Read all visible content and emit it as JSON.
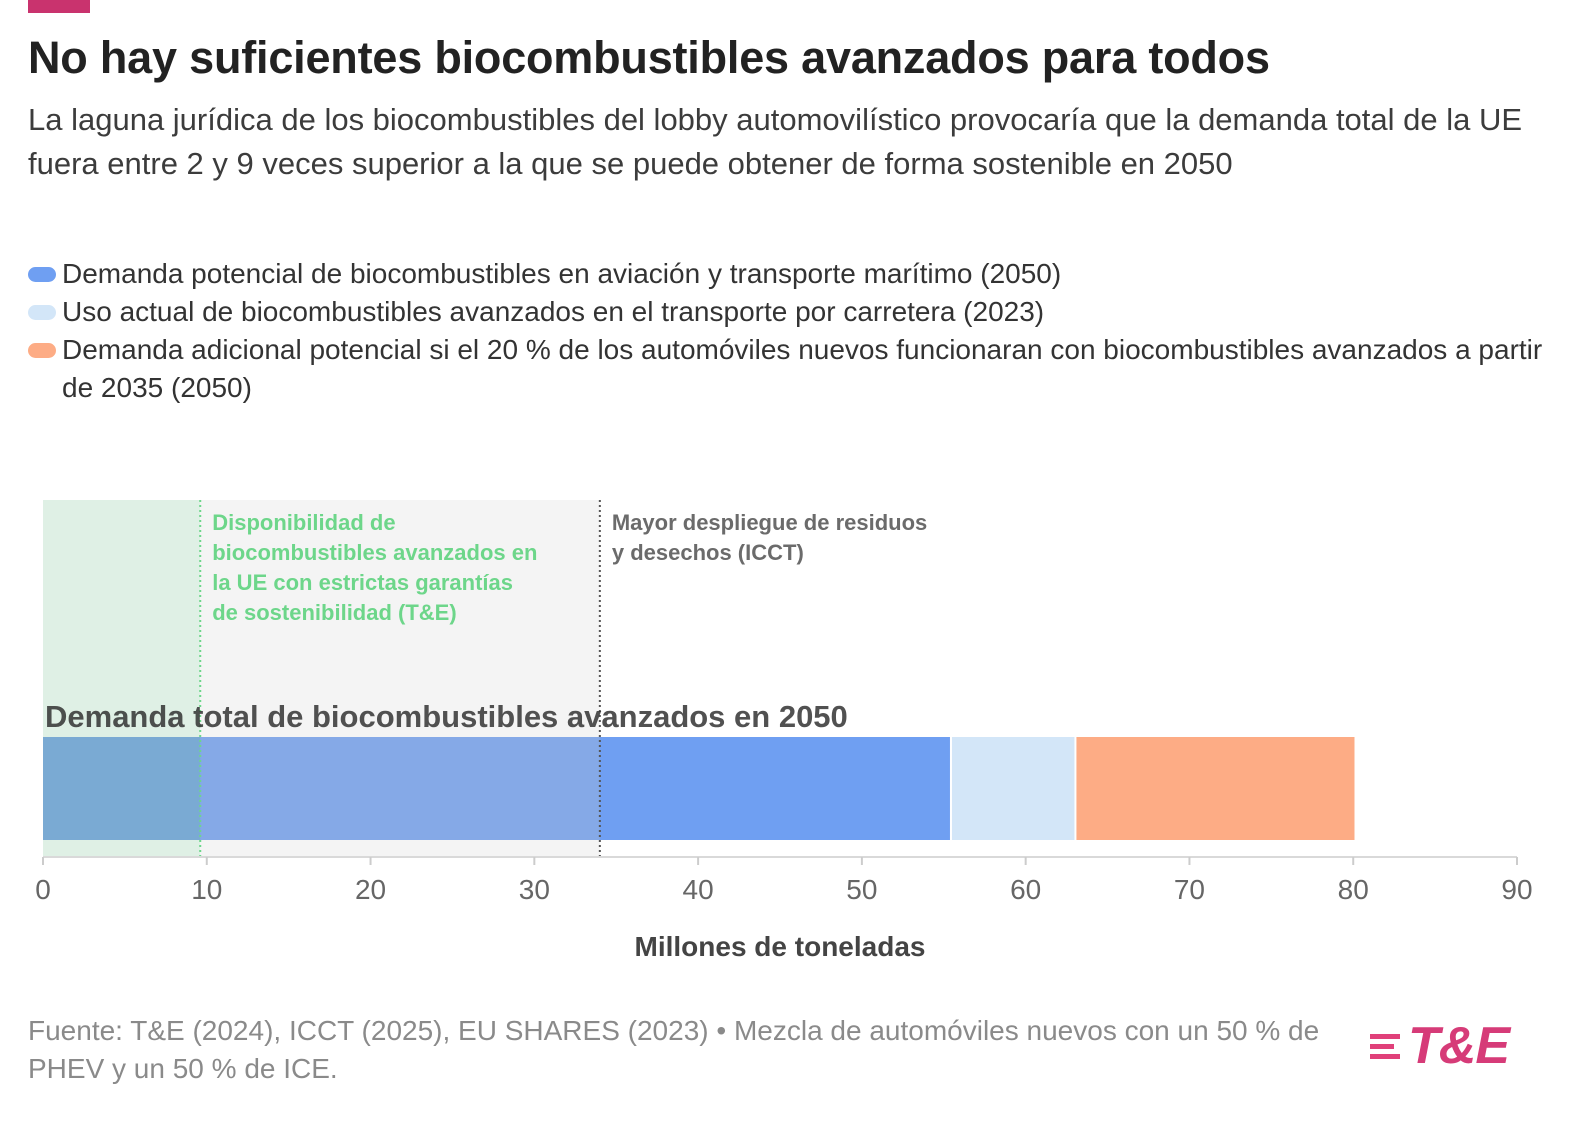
{
  "header": {
    "title": "No hay suficientes biocombustibles avanzados para todos",
    "subtitle": "La laguna jurídica de los biocombustibles del lobby automovilístico provocaría que la demanda total de la UE fuera entre 2 y 9 veces superior a la que se puede obtener de forma sostenible en 2050",
    "accent_color": "#c9336e"
  },
  "legend": [
    {
      "label": "Demanda potencial de biocombustibles en aviación y transporte marítimo (2050)",
      "color": "#6f9ff2"
    },
    {
      "label": "Uso actual de biocombustibles avanzados en el transporte por carretera (2023)",
      "color": "#d3e6f8"
    },
    {
      "label": "Demanda adicional potencial si el 20 % de los automóviles nuevos funcionaran con biocombustibles avanzados a partir de 2035 (2050)",
      "color": "#fdac85"
    }
  ],
  "chart_data": {
    "type": "bar",
    "orientation": "horizontal",
    "stacked": true,
    "categories": [
      "Demanda total de biocombustibles avanzados en 2050"
    ],
    "series": [
      {
        "name": "Demanda potencial de biocombustibles en aviación y transporte marítimo (2050)",
        "values": [
          55.5
        ],
        "color": "#6f9ff2"
      },
      {
        "name": "Uso actual de biocombustibles avanzados en el transporte por carretera (2023)",
        "values": [
          7.6
        ],
        "color": "#d3e6f8"
      },
      {
        "name": "Demanda adicional potencial si el 20 % de los automóviles nuevos funcionaran con biocombustibles avanzados a partir de 2035 (2050)",
        "values": [
          17.1
        ],
        "color": "#fdac85"
      }
    ],
    "bar_label": "Demanda total de biocombustibles avanzados en 2050",
    "reference_ranges": [
      {
        "label": "Disponibilidad de biocombustibles avanzados en la UE con estrictas garantías de sostenibilidad (T&E)",
        "start": 0,
        "end": 9.6,
        "fill": "#dff0e5",
        "line": "#6dd68a",
        "text_color": "#6dd68a"
      },
      {
        "label": "Mayor despliegue de residuos y desechos (ICCT)",
        "start": 9.6,
        "end": 34,
        "fill": "#f4f4f4",
        "line": "#555555",
        "text_color": "#6b6b6b"
      }
    ],
    "xlabel": "Millones de toneladas",
    "xlim": [
      0,
      90
    ],
    "xticks": [
      0,
      10,
      20,
      30,
      40,
      50,
      60,
      70,
      80,
      90
    ],
    "grid": false
  },
  "footer": {
    "source": "Fuente: T&E (2024), ICCT (2025), EU SHARES (2023) • Mezcla de automóviles nuevos con un 50 % de PHEV y un 50 % de ICE.",
    "logo_text": "T&E",
    "logo_color": "#d63b78"
  }
}
